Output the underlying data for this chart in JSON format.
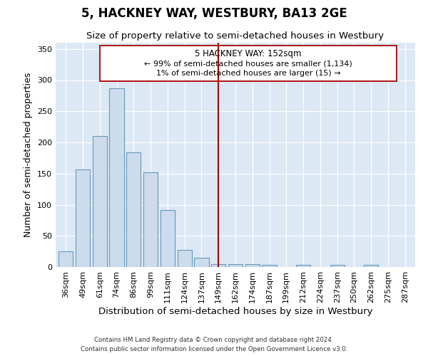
{
  "title": "5, HACKNEY WAY, WESTBURY, BA13 2GE",
  "subtitle": "Size of property relative to semi-detached houses in Westbury",
  "xlabel": "Distribution of semi-detached houses by size in Westbury",
  "ylabel": "Number of semi-detached properties",
  "categories": [
    "36sqm",
    "49sqm",
    "61sqm",
    "74sqm",
    "86sqm",
    "99sqm",
    "111sqm",
    "124sqm",
    "137sqm",
    "149sqm",
    "162sqm",
    "174sqm",
    "187sqm",
    "199sqm",
    "212sqm",
    "224sqm",
    "237sqm",
    "250sqm",
    "262sqm",
    "275sqm",
    "287sqm"
  ],
  "values": [
    25,
    157,
    210,
    287,
    184,
    152,
    92,
    27,
    15,
    5,
    5,
    5,
    3,
    0,
    3,
    0,
    3,
    0,
    3,
    0,
    0
  ],
  "bar_color": "#ccdcec",
  "bar_edge_color": "#6699bb",
  "vline_color": "#aa0000",
  "annotation_title": "5 HACKNEY WAY: 152sqm",
  "annotation_line1": "← 99% of semi-detached houses are smaller (1,134)",
  "annotation_line2": "1% of semi-detached houses are larger (15) →",
  "annotation_box_edge_color": "#aa0000",
  "ylim_max": 360,
  "yticks": [
    0,
    50,
    100,
    150,
    200,
    250,
    300,
    350
  ],
  "background_color": "#dce8f4",
  "grid_color": "#c0cdd8",
  "footer1": "Contains HM Land Registry data © Crown copyright and database right 2024.",
  "footer2": "Contains public sector information licensed under the Open Government Licence v3.0."
}
